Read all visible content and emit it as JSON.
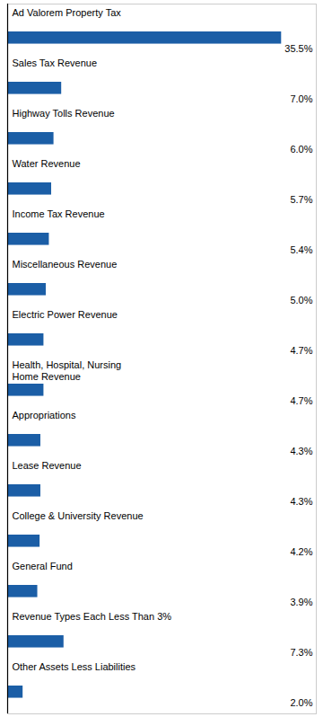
{
  "chart_data": {
    "type": "bar",
    "orientation": "horizontal",
    "categories": [
      "Ad Valorem Property Tax",
      "Sales Tax Revenue",
      "Highway Tolls Revenue",
      "Water Revenue",
      "Income Tax Revenue",
      "Miscellaneous Revenue",
      "Electric Power Revenue",
      "Health, Hospital, Nursing\nHome Revenue",
      "Appropriations",
      "Lease Revenue",
      "College & University Revenue",
      "General Fund",
      "Revenue Types Each Less Than 3%",
      "Other Assets Less Liabilities"
    ],
    "values": [
      35.5,
      7.0,
      6.0,
      5.7,
      5.4,
      5.0,
      4.7,
      4.7,
      4.3,
      4.3,
      4.2,
      3.9,
      7.3,
      2.0
    ],
    "value_labels": [
      "35.5%",
      "7.0%",
      "6.0%",
      "5.7%",
      "5.4%",
      "5.0%",
      "4.7%",
      "4.7%",
      "4.3%",
      "4.3%",
      "4.2%",
      "3.9%",
      "7.3%",
      "2.0%"
    ],
    "color": "#1B5EA6",
    "xlim": [
      0,
      40
    ],
    "data_labels": true,
    "tick_labels": false,
    "grid": false
  }
}
